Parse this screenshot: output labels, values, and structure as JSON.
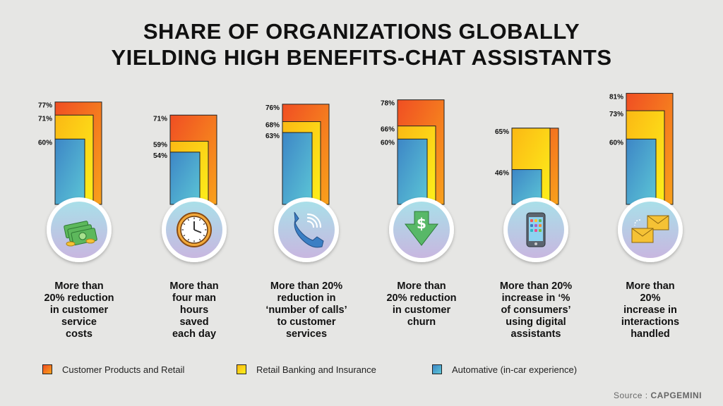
{
  "title_line1": "SHARE OF ORGANIZATIONS GLOBALLY",
  "title_line2": "YIELDING HIGH BENEFITS-CHAT ASSISTANTS",
  "chart_data": {
    "type": "bar",
    "title": "SHARE OF ORGANIZATIONS GLOBALLY YIELDING HIGH BENEFITS-CHAT ASSISTANTS",
    "categories": [
      "More than 20% reduction in customer service costs",
      "More than four man hours saved each day",
      "More than 20% reduction in ‘number of calls’ to customer services",
      "More than 20% reduction in customer churn",
      "More than 20% increase in ‘% of consumers’ using digital assistants",
      "More than 20% increase in interactions handled"
    ],
    "series": [
      {
        "name": "Customer Products and Retail",
        "values": [
          77,
          71,
          76,
          78,
          65,
          81
        ],
        "color": "#f26522"
      },
      {
        "name": "Retail Banking and Insurance",
        "values": [
          71,
          59,
          68,
          66,
          65,
          73
        ],
        "color": "#fcd513"
      },
      {
        "name": "Automative (in-car experience)",
        "values": [
          60,
          54,
          63,
          60,
          46,
          60
        ],
        "color": "#4ba6cf"
      }
    ],
    "value_labels": [
      [
        "77%",
        "71%",
        "60%"
      ],
      [
        "71%",
        "59%",
        "54%"
      ],
      [
        "76%",
        "68%",
        "63%"
      ],
      [
        "78%",
        "66%",
        "60%"
      ],
      [
        "65%",
        "46%"
      ],
      [
        "81%",
        "73%",
        "60%"
      ]
    ],
    "icons": [
      "money-icon",
      "clock-icon",
      "phone-icon",
      "dollar-down-icon",
      "smartphone-icon",
      "envelopes-icon"
    ],
    "legend_position": "bottom"
  },
  "descriptions": [
    [
      "More than",
      "20% reduction",
      "in customer",
      "service",
      "costs"
    ],
    [
      "More than",
      "four man",
      "hours",
      "saved",
      "each day"
    ],
    [
      "More than 20%",
      "reduction in",
      "‘number of calls’",
      "to customer",
      "services"
    ],
    [
      "More than",
      "20% reduction",
      "in customer",
      "churn"
    ],
    [
      "More than 20%",
      "increase in  ‘%",
      "of  consumers’",
      "using digital",
      "assistants"
    ],
    [
      "More than",
      "20%",
      "increase in",
      "interactions",
      "handled"
    ]
  ],
  "legend": [
    {
      "label": "Customer Products and Retail",
      "color": "#f26522"
    },
    {
      "label": "Retail Banking and Insurance",
      "color": "#fcd513"
    },
    {
      "label": "Automative (in-car experience)",
      "color": "#4ba6cf"
    }
  ],
  "source_prefix": "Source : ",
  "source_name": "CAPGEMINI"
}
